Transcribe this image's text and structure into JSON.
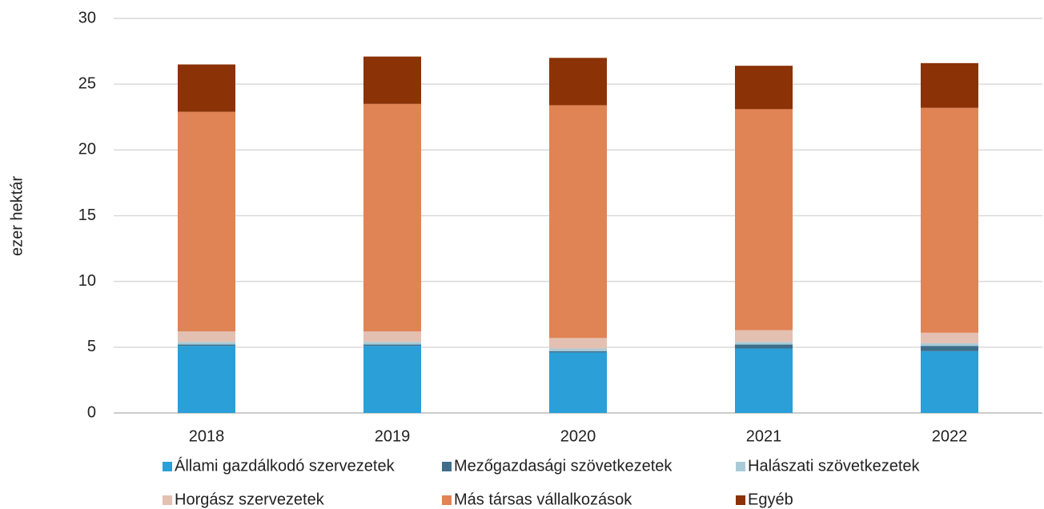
{
  "chart_data": {
    "type": "stacked_bar",
    "y_label": "ezer hektár",
    "categories": [
      "2018",
      "2019",
      "2020",
      "2021",
      "2022"
    ],
    "series": [
      {
        "name": "Állami gazdálkodó szervezetek",
        "color": "#2a9fd8",
        "values": [
          5.1,
          5.1,
          4.6,
          4.9,
          4.7
        ]
      },
      {
        "name": "Mezőgazdasági szövetkezetek",
        "color": "#3d6e8a",
        "values": [
          0.1,
          0.1,
          0.1,
          0.3,
          0.4
        ]
      },
      {
        "name": "Halászati szövetkezetek",
        "color": "#a9cbd8",
        "values": [
          0.2,
          0.2,
          0.2,
          0.2,
          0.2
        ]
      },
      {
        "name": "Horgász szervezetek",
        "color": "#e3c0b2",
        "values": [
          0.8,
          0.8,
          0.8,
          0.9,
          0.8
        ]
      },
      {
        "name": "Más társas vállalkozások",
        "color": "#e08355",
        "values": [
          16.7,
          17.3,
          17.7,
          16.8,
          17.1
        ]
      },
      {
        "name": "Egyéb",
        "color": "#8b3206",
        "values": [
          3.6,
          3.6,
          3.6,
          3.3,
          3.4
        ]
      }
    ],
    "ylim": [
      0,
      30
    ],
    "yticks": [
      0,
      5,
      10,
      15,
      20,
      25,
      30
    ],
    "grid": true,
    "legend": "bottom"
  }
}
